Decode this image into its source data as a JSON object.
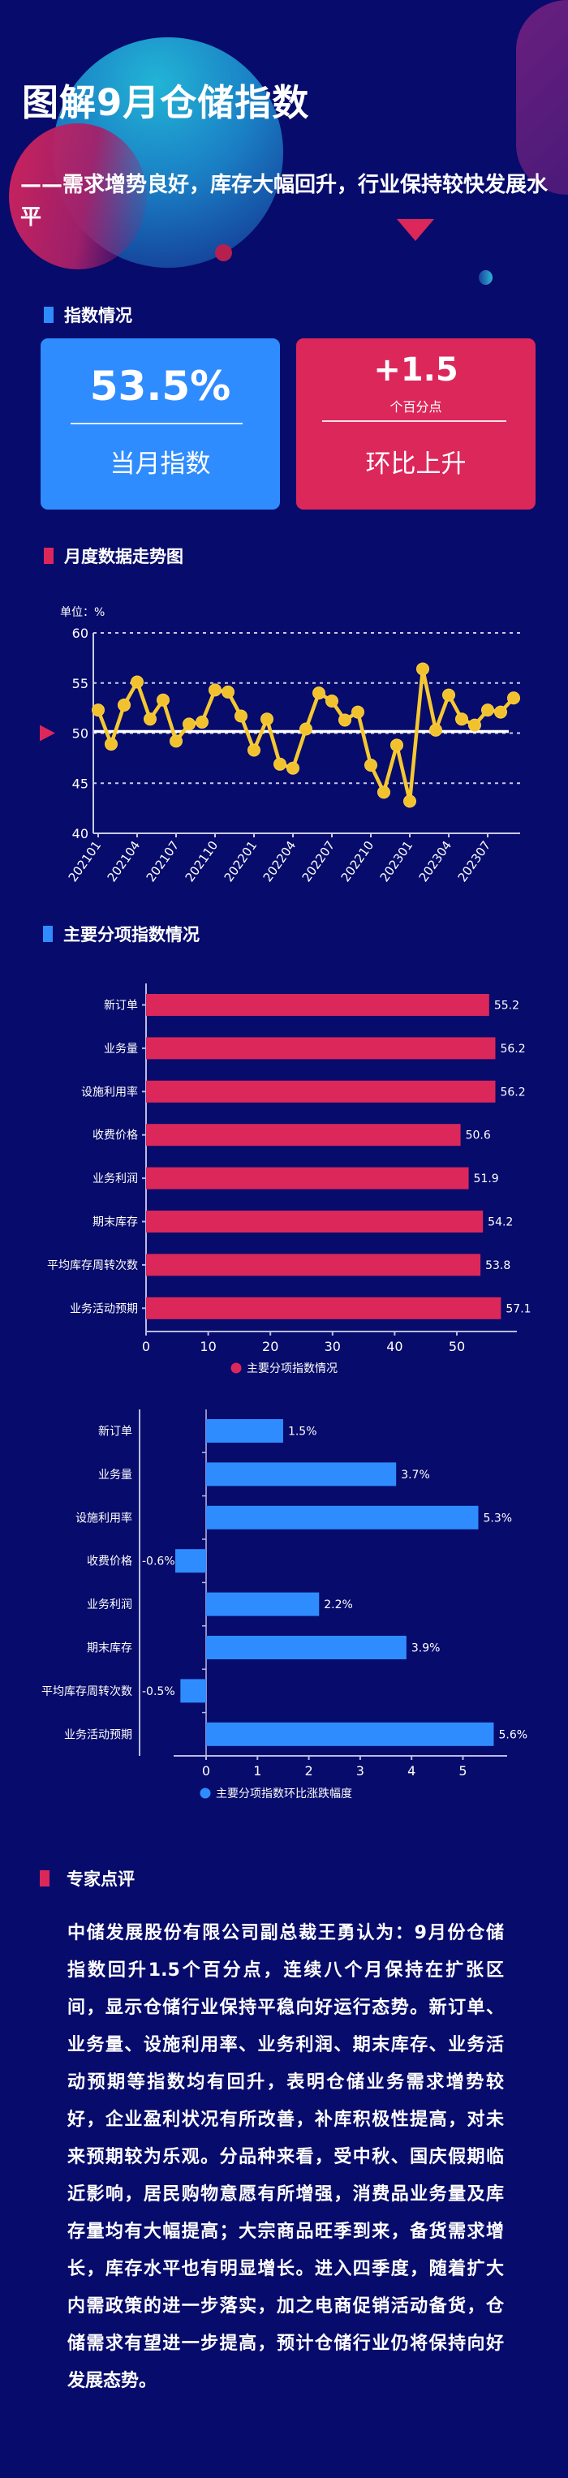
{
  "header": {
    "title": "图解9月仓储指数",
    "subtitle": "——需求增势良好，库存大幅回升，行业保持较快发展水平"
  },
  "colors": {
    "background": "#070b6b",
    "blue": "#2f8cff",
    "pink": "#dc275b",
    "line": "#f5c832"
  },
  "section_index": {
    "heading": "指数情况",
    "current": {
      "value": "53.5%",
      "label": "当月指数"
    },
    "change": {
      "value": "+1.5",
      "unit": "个百分点",
      "label": "环比上升"
    }
  },
  "section_trend": {
    "heading": "月度数据走势图"
  },
  "section_sub": {
    "heading": "主要分项指数情况"
  },
  "section_expert": {
    "heading": "专家点评",
    "lines": [
      "中储发展股份有限公司副总裁王勇认为：9月份仓储",
      "指数回升1.5个百分点，连续八个月保持在扩张区",
      "间，显示仓储行业保持平稳向好运行态势。新订单、",
      "业务量、设施利用率、业务利润、期末库存、业务活",
      "动预期等指数均有回升，表明仓储业务需求增势较",
      "好，企业盈利状况有所改善，补库积极性提高，对未",
      "来预期较为乐观。分品种来看，受中秋、国庆假期临",
      "近影响，居民购物意愿有所增强，消费品业务量及库",
      "存量均有大幅提高；大宗商品旺季到来，备货需求增",
      "长，库存水平也有明显增长。进入四季度，随着扩大",
      "内需政策的进一步落实，加之电商促销活动备货，仓",
      "储需求有望进一步提高，预计仓储行业仍将保持向好",
      "发展态势。"
    ]
  },
  "chart_data": [
    {
      "type": "line",
      "unit_label": "单位：%",
      "x": [
        "202101",
        "202102",
        "202103",
        "202104",
        "202105",
        "202106",
        "202107",
        "202108",
        "202109",
        "202110",
        "202111",
        "202112",
        "202201",
        "202202",
        "202203",
        "202204",
        "202205",
        "202206",
        "202207",
        "202208",
        "202209",
        "202210",
        "202211",
        "202212",
        "202301",
        "202302",
        "202303",
        "202304",
        "202305",
        "202306",
        "202307",
        "202308",
        "202309"
      ],
      "x_tick_labels": [
        "202101",
        "202104",
        "202107",
        "202110",
        "202201",
        "202204",
        "202207",
        "202210",
        "202301",
        "202304",
        "202307"
      ],
      "values": [
        52.3,
        48.9,
        52.8,
        55.1,
        51.4,
        53.3,
        49.2,
        50.9,
        51.1,
        54.3,
        54.1,
        51.7,
        48.3,
        51.4,
        46.9,
        46.5,
        50.4,
        54.0,
        53.2,
        51.3,
        52.1,
        46.8,
        44.1,
        48.8,
        43.2,
        56.4,
        50.3,
        53.8,
        51.4,
        50.8,
        52.3,
        52.1,
        53.5
      ],
      "ylim": [
        40,
        60
      ],
      "yticks": [
        40,
        45,
        50,
        55,
        60
      ],
      "reference_line": 50,
      "grid": "dashed horizontal"
    },
    {
      "type": "bar",
      "orientation": "horizontal",
      "categories": [
        "新订单",
        "业务量",
        "设施利用率",
        "收费价格",
        "业务利润",
        "期末库存",
        "平均库存周转次数",
        "业务活动预期"
      ],
      "values": [
        55.2,
        56.2,
        56.2,
        50.6,
        51.9,
        54.2,
        53.8,
        57.1
      ],
      "value_labels": [
        "55.2",
        "56.2",
        "56.2",
        "50.6",
        "51.9",
        "54.2",
        "53.8",
        "57.1"
      ],
      "xticks": [
        0,
        10,
        20,
        30,
        40,
        50
      ],
      "xlim": [
        0,
        60
      ],
      "legend": "主要分项指数情况",
      "legend_position": "bottom"
    },
    {
      "type": "bar",
      "orientation": "horizontal",
      "categories": [
        "新订单",
        "业务量",
        "设施利用率",
        "收费价格",
        "业务利润",
        "期末库存",
        "平均库存周转次数",
        "业务活动预期"
      ],
      "values": [
        1.5,
        3.7,
        5.3,
        -0.6,
        2.2,
        3.9,
        -0.5,
        5.6
      ],
      "value_labels": [
        "1.5%",
        "3.7%",
        "5.3%",
        "-0.6%",
        "2.2%",
        "3.9%",
        "-0.5%",
        "5.6%"
      ],
      "xticks": [
        0,
        1,
        2,
        3,
        4,
        5
      ],
      "xlim": [
        -0.6,
        5.8
      ],
      "legend": "主要分项指数环比涨跌幅度",
      "legend_position": "bottom"
    }
  ]
}
